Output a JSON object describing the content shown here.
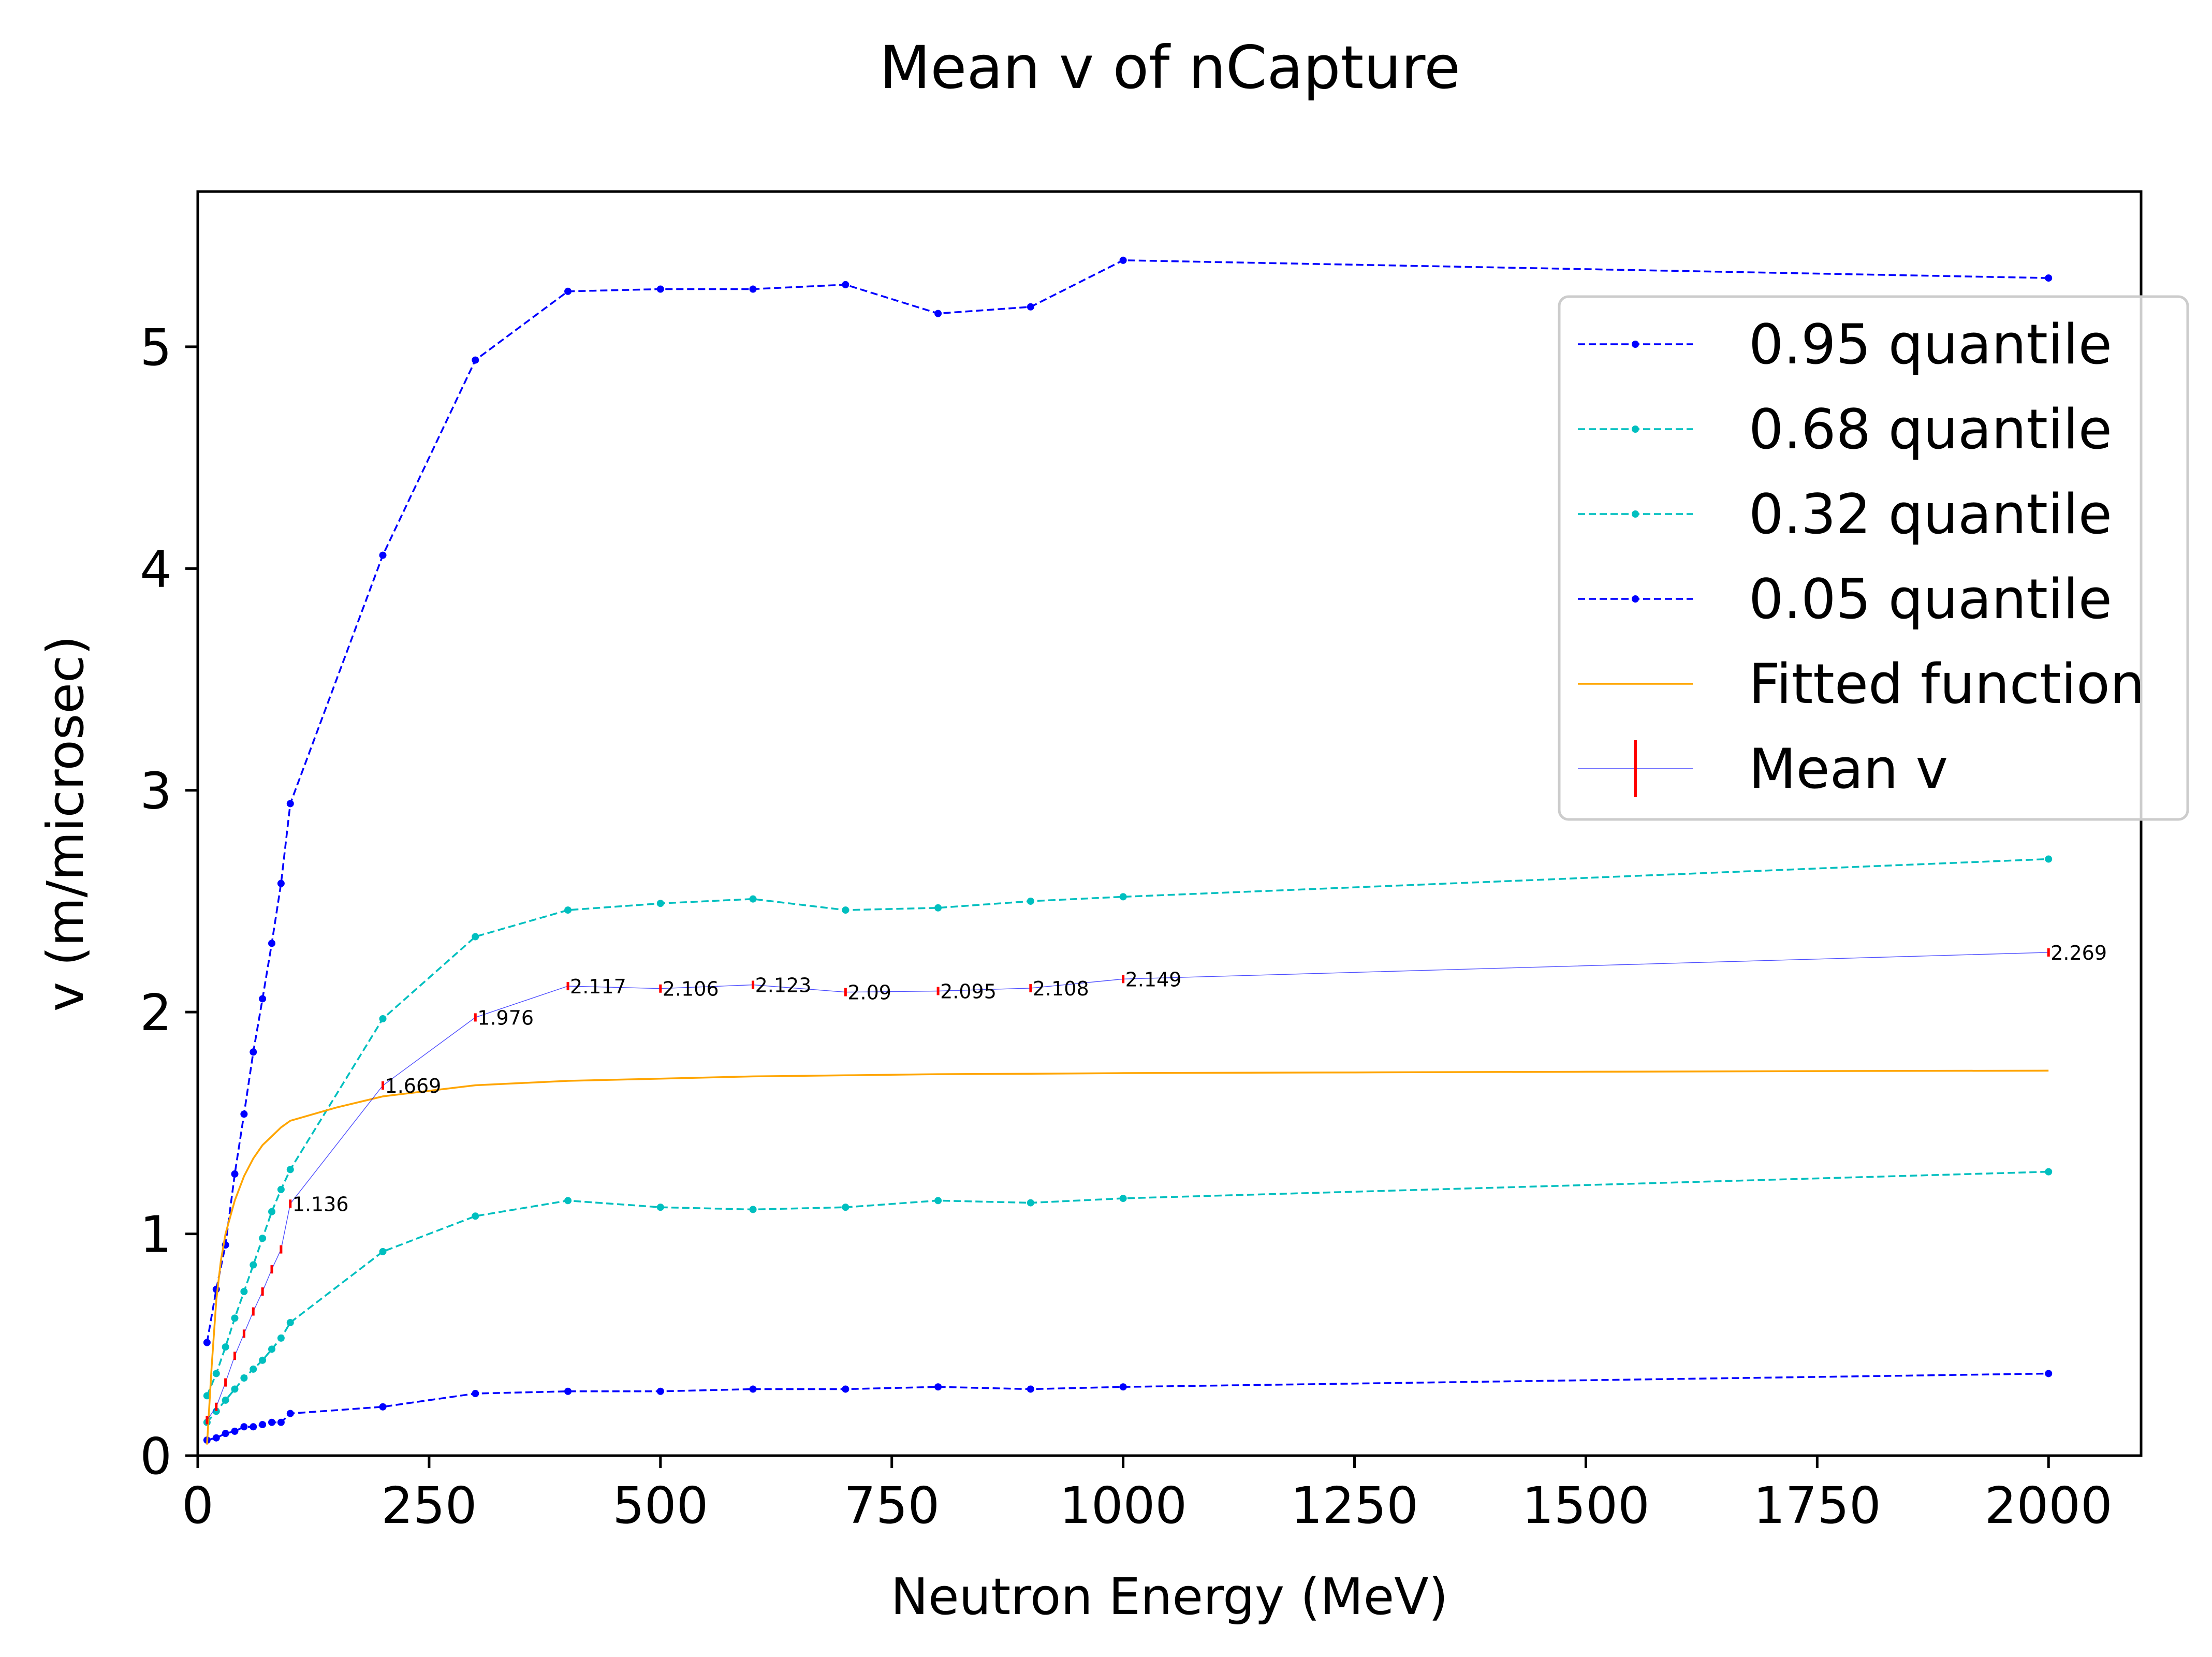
{
  "chart_data": {
    "type": "line",
    "title": "Mean v of nCapture",
    "xlabel": "Neutron Energy (MeV)",
    "ylabel": "v (m/microsec)",
    "xlim": [
      0,
      2100
    ],
    "ylim": [
      0,
      5.7
    ],
    "xticks": [
      0,
      250,
      500,
      750,
      1000,
      1250,
      1500,
      1750,
      2000
    ],
    "xtick_labels": [
      "0",
      "250",
      "500",
      "750",
      "1000",
      "1250",
      "1500",
      "1750",
      "2000"
    ],
    "yticks": [
      0,
      1,
      2,
      3,
      4,
      5
    ],
    "ytick_labels": [
      "0",
      "1",
      "2",
      "3",
      "4",
      "5"
    ],
    "grid": false,
    "legend_position": "upper-right",
    "series": [
      {
        "name": "0.95 quantile",
        "color": "#0000ff",
        "style": "dashed-dots",
        "x": [
          10,
          20,
          30,
          40,
          50,
          60,
          70,
          80,
          90,
          100,
          200,
          300,
          400,
          500,
          600,
          700,
          800,
          900,
          1000,
          2000
        ],
        "y": [
          0.51,
          0.75,
          0.95,
          1.27,
          1.54,
          1.82,
          2.06,
          2.31,
          2.58,
          2.94,
          4.06,
          4.94,
          5.25,
          5.26,
          5.26,
          5.28,
          5.15,
          5.18,
          5.39,
          5.31
        ]
      },
      {
        "name": "0.68 quantile",
        "color": "#00bfbf",
        "style": "dashed-dots",
        "x": [
          10,
          20,
          30,
          40,
          50,
          60,
          70,
          80,
          90,
          100,
          200,
          300,
          400,
          500,
          600,
          700,
          800,
          900,
          1000,
          2000
        ],
        "y": [
          0.27,
          0.37,
          0.49,
          0.62,
          0.74,
          0.86,
          0.98,
          1.1,
          1.2,
          1.29,
          1.97,
          2.34,
          2.46,
          2.49,
          2.51,
          2.46,
          2.47,
          2.5,
          2.52,
          2.69
        ]
      },
      {
        "name": "0.32 quantile",
        "color": "#00bfbf",
        "style": "dashed-dots",
        "x": [
          10,
          20,
          30,
          40,
          50,
          60,
          70,
          80,
          90,
          100,
          200,
          300,
          400,
          500,
          600,
          700,
          800,
          900,
          1000,
          2000
        ],
        "y": [
          0.15,
          0.2,
          0.25,
          0.3,
          0.35,
          0.39,
          0.43,
          0.48,
          0.53,
          0.6,
          0.92,
          1.08,
          1.15,
          1.12,
          1.11,
          1.12,
          1.15,
          1.14,
          1.16,
          1.28
        ]
      },
      {
        "name": "0.05 quantile",
        "color": "#0000ff",
        "style": "dashed-dots",
        "x": [
          10,
          20,
          30,
          40,
          50,
          60,
          70,
          80,
          90,
          100,
          200,
          300,
          400,
          500,
          600,
          700,
          800,
          900,
          1000,
          2000
        ],
        "y": [
          0.07,
          0.08,
          0.1,
          0.11,
          0.13,
          0.13,
          0.14,
          0.15,
          0.15,
          0.19,
          0.22,
          0.28,
          0.29,
          0.29,
          0.3,
          0.3,
          0.31,
          0.3,
          0.31,
          0.37
        ]
      },
      {
        "name": "Fitted function",
        "color": "#ffa500",
        "style": "solid",
        "x": [
          10,
          15,
          20,
          25,
          30,
          40,
          50,
          60,
          70,
          80,
          90,
          100,
          150,
          200,
          300,
          400,
          500,
          600,
          700,
          800,
          900,
          1000,
          1250,
          1500,
          1750,
          2000
        ],
        "y": [
          0.05,
          0.4,
          0.7,
          0.88,
          1.0,
          1.15,
          1.26,
          1.34,
          1.4,
          1.44,
          1.48,
          1.51,
          1.57,
          1.62,
          1.67,
          1.69,
          1.7,
          1.71,
          1.715,
          1.72,
          1.722,
          1.725,
          1.728,
          1.731,
          1.734,
          1.736
        ]
      },
      {
        "name": "Mean v",
        "color": "#0000ff",
        "errorbar_color": "#ff0000",
        "style": "thin-solid-errorbar",
        "x": [
          10,
          20,
          30,
          40,
          50,
          60,
          70,
          80,
          90,
          100,
          200,
          300,
          400,
          500,
          600,
          700,
          800,
          900,
          1000,
          2000
        ],
        "y": [
          0.16,
          0.22,
          0.33,
          0.45,
          0.55,
          0.65,
          0.74,
          0.84,
          0.93,
          1.136,
          1.669,
          1.976,
          2.117,
          2.106,
          2.123,
          2.09,
          2.095,
          2.108,
          2.149,
          2.269
        ],
        "labels": [
          "",
          "",
          "",
          "",
          "",
          "",
          "",
          "",
          "",
          "1.136",
          "1.669",
          "1.976",
          "2.117",
          "2.106",
          "2.123",
          "2.09",
          "2.095",
          "2.108",
          "2.149",
          "2.269"
        ]
      }
    ]
  }
}
